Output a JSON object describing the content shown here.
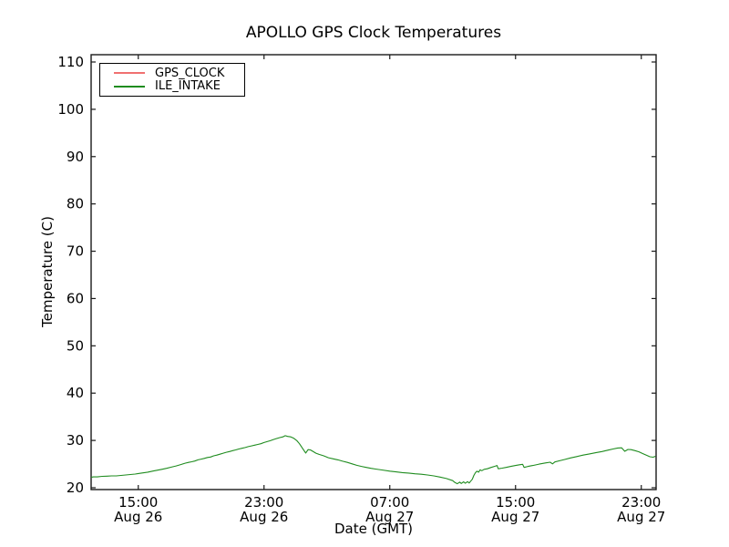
{
  "chart_data": {
    "type": "line",
    "title": "APOLLO GPS Clock Temperatures",
    "xlabel": "Date (GMT)",
    "ylabel": "Temperature (C)",
    "yticks": [
      20,
      30,
      40,
      50,
      60,
      70,
      80,
      90,
      100,
      110
    ],
    "ylim": [
      19.6,
      111.5
    ],
    "x_unit": "hours_after_Aug26_12:00_GMT",
    "x_hours_range": [
      0,
      35.94
    ],
    "xticks": [
      {
        "time": "15:00",
        "date": "Aug 26",
        "t": 3
      },
      {
        "time": "23:00",
        "date": "Aug 26",
        "t": 11
      },
      {
        "time": "07:00",
        "date": "Aug 27",
        "t": 19
      },
      {
        "time": "15:00",
        "date": "Aug 27",
        "t": 27
      },
      {
        "time": "23:00",
        "date": "Aug 27",
        "t": 35
      }
    ],
    "legend_position": "upper left",
    "grid": false,
    "series": [
      {
        "name": "GPS_CLOCK",
        "color": "#f07070",
        "visible_in_plot": false,
        "points": []
      },
      {
        "name": "ILE_INTAKE",
        "color": "#1f8c1f",
        "visible_in_plot": true,
        "points": [
          [
            0,
            22.2
          ],
          [
            0.15,
            22.3
          ],
          [
            0.4,
            22.3
          ],
          [
            0.7,
            22.4
          ],
          [
            1.0,
            22.45
          ],
          [
            1.3,
            22.5
          ],
          [
            1.6,
            22.5
          ],
          [
            1.9,
            22.6
          ],
          [
            2.2,
            22.7
          ],
          [
            2.5,
            22.8
          ],
          [
            2.8,
            22.9
          ],
          [
            3.0,
            23.0
          ],
          [
            3.3,
            23.15
          ],
          [
            3.6,
            23.3
          ],
          [
            3.9,
            23.5
          ],
          [
            4.2,
            23.7
          ],
          [
            4.5,
            23.9
          ],
          [
            4.8,
            24.1
          ],
          [
            5.1,
            24.35
          ],
          [
            5.4,
            24.6
          ],
          [
            5.7,
            24.9
          ],
          [
            6.0,
            25.2
          ],
          [
            6.2,
            25.35
          ],
          [
            6.4,
            25.5
          ],
          [
            6.6,
            25.65
          ],
          [
            6.8,
            25.9
          ],
          [
            7.0,
            26.05
          ],
          [
            7.2,
            26.2
          ],
          [
            7.4,
            26.4
          ],
          [
            7.6,
            26.5
          ],
          [
            7.8,
            26.75
          ],
          [
            8.0,
            26.9
          ],
          [
            8.2,
            27.1
          ],
          [
            8.4,
            27.3
          ],
          [
            8.6,
            27.5
          ],
          [
            8.8,
            27.65
          ],
          [
            9.0,
            27.85
          ],
          [
            9.2,
            28.0
          ],
          [
            9.4,
            28.2
          ],
          [
            9.6,
            28.35
          ],
          [
            9.8,
            28.5
          ],
          [
            10.0,
            28.7
          ],
          [
            10.2,
            28.85
          ],
          [
            10.4,
            29.0
          ],
          [
            10.6,
            29.15
          ],
          [
            10.8,
            29.3
          ],
          [
            11.0,
            29.55
          ],
          [
            11.2,
            29.75
          ],
          [
            11.4,
            29.95
          ],
          [
            11.6,
            30.2
          ],
          [
            11.8,
            30.4
          ],
          [
            12.0,
            30.6
          ],
          [
            12.2,
            30.75
          ],
          [
            12.35,
            31.0
          ],
          [
            12.5,
            30.85
          ],
          [
            12.7,
            30.75
          ],
          [
            12.9,
            30.45
          ],
          [
            13.1,
            29.9
          ],
          [
            13.25,
            29.3
          ],
          [
            13.4,
            28.6
          ],
          [
            13.55,
            27.85
          ],
          [
            13.65,
            27.35
          ],
          [
            13.8,
            28.05
          ],
          [
            13.95,
            28.0
          ],
          [
            14.1,
            27.7
          ],
          [
            14.3,
            27.3
          ],
          [
            14.5,
            27.05
          ],
          [
            14.8,
            26.75
          ],
          [
            15.1,
            26.35
          ],
          [
            15.4,
            26.1
          ],
          [
            15.7,
            25.9
          ],
          [
            16.0,
            25.6
          ],
          [
            16.3,
            25.35
          ],
          [
            16.6,
            25.05
          ],
          [
            16.9,
            24.75
          ],
          [
            17.2,
            24.5
          ],
          [
            17.5,
            24.3
          ],
          [
            17.8,
            24.1
          ],
          [
            18.1,
            23.95
          ],
          [
            18.5,
            23.75
          ],
          [
            19.0,
            23.5
          ],
          [
            19.4,
            23.35
          ],
          [
            19.8,
            23.2
          ],
          [
            20.2,
            23.1
          ],
          [
            20.6,
            22.95
          ],
          [
            21.0,
            22.85
          ],
          [
            21.4,
            22.7
          ],
          [
            21.8,
            22.5
          ],
          [
            22.2,
            22.25
          ],
          [
            22.6,
            21.95
          ],
          [
            23.0,
            21.5
          ],
          [
            23.15,
            21.1
          ],
          [
            23.3,
            20.85
          ],
          [
            23.45,
            21.2
          ],
          [
            23.55,
            20.9
          ],
          [
            23.7,
            21.25
          ],
          [
            23.8,
            20.95
          ],
          [
            23.95,
            21.3
          ],
          [
            24.05,
            21.0
          ],
          [
            24.15,
            21.4
          ],
          [
            24.25,
            21.8
          ],
          [
            24.35,
            22.6
          ],
          [
            24.45,
            23.2
          ],
          [
            24.55,
            23.5
          ],
          [
            24.65,
            23.3
          ],
          [
            24.75,
            23.8
          ],
          [
            24.85,
            23.6
          ],
          [
            25.0,
            23.9
          ],
          [
            25.2,
            24.0
          ],
          [
            25.45,
            24.3
          ],
          [
            25.7,
            24.55
          ],
          [
            25.82,
            24.7
          ],
          [
            25.9,
            24.0
          ],
          [
            26.15,
            24.15
          ],
          [
            26.4,
            24.3
          ],
          [
            26.7,
            24.5
          ],
          [
            27.0,
            24.7
          ],
          [
            27.25,
            24.85
          ],
          [
            27.45,
            24.95
          ],
          [
            27.55,
            24.3
          ],
          [
            27.8,
            24.5
          ],
          [
            28.1,
            24.7
          ],
          [
            28.5,
            25.0
          ],
          [
            28.9,
            25.25
          ],
          [
            29.2,
            25.4
          ],
          [
            29.35,
            25.05
          ],
          [
            29.5,
            25.45
          ],
          [
            29.8,
            25.7
          ],
          [
            30.1,
            25.95
          ],
          [
            30.5,
            26.3
          ],
          [
            30.9,
            26.6
          ],
          [
            31.3,
            26.9
          ],
          [
            31.7,
            27.15
          ],
          [
            32.1,
            27.4
          ],
          [
            32.5,
            27.65
          ],
          [
            32.9,
            27.95
          ],
          [
            33.2,
            28.2
          ],
          [
            33.5,
            28.4
          ],
          [
            33.75,
            28.45
          ],
          [
            33.95,
            27.7
          ],
          [
            34.15,
            28.1
          ],
          [
            34.35,
            28.05
          ],
          [
            34.6,
            27.85
          ],
          [
            34.85,
            27.6
          ],
          [
            35.1,
            27.2
          ],
          [
            35.35,
            26.85
          ],
          [
            35.55,
            26.55
          ],
          [
            35.75,
            26.45
          ],
          [
            35.9,
            26.65
          ]
        ]
      }
    ]
  }
}
